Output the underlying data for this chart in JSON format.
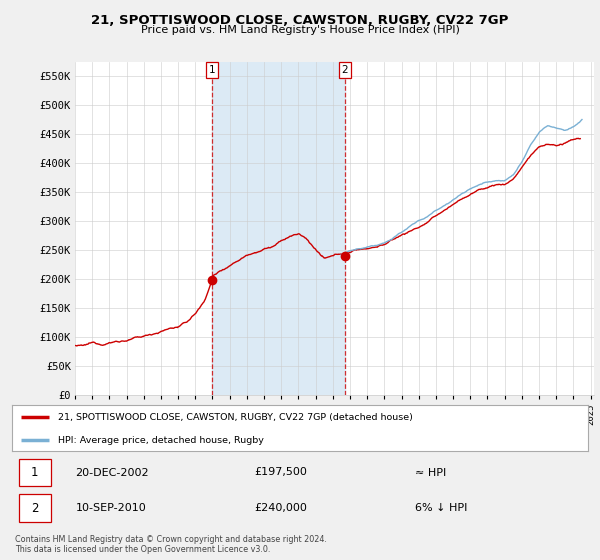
{
  "title": "21, SPOTTISWOOD CLOSE, CAWSTON, RUGBY, CV22 7GP",
  "subtitle": "Price paid vs. HM Land Registry's House Price Index (HPI)",
  "ylabel_ticks": [
    "£0",
    "£50K",
    "£100K",
    "£150K",
    "£200K",
    "£250K",
    "£300K",
    "£350K",
    "£400K",
    "£450K",
    "£500K",
    "£550K"
  ],
  "ytick_values": [
    0,
    50000,
    100000,
    150000,
    200000,
    250000,
    300000,
    350000,
    400000,
    450000,
    500000,
    550000
  ],
  "ylim": [
    0,
    575000
  ],
  "sale1_date": "20-DEC-2002",
  "sale1_price": 197500,
  "sale1_hpi": "≈ HPI",
  "sale2_date": "10-SEP-2010",
  "sale2_price": 240000,
  "sale2_hpi": "6% ↓ HPI",
  "legend_label1": "21, SPOTTISWOOD CLOSE, CAWSTON, RUGBY, CV22 7GP (detached house)",
  "legend_label2": "HPI: Average price, detached house, Rugby",
  "footer": "Contains HM Land Registry data © Crown copyright and database right 2024.\nThis data is licensed under the Open Government Licence v3.0.",
  "line_color_price": "#cc0000",
  "line_color_hpi": "#7ab0d4",
  "vline_color": "#cc0000",
  "highlight_color": "#dceaf5",
  "bg_color": "#ffffff",
  "grid_color": "#cccccc",
  "marker1_x": 2002.97,
  "marker1_y": 197500,
  "marker2_x": 2010.69,
  "marker2_y": 240000,
  "vline1_x": 2002.97,
  "vline2_x": 2010.69,
  "hpi_start_year": 2010.5,
  "xmin": 1995,
  "xmax": 2025,
  "page_bg": "#f0f0f0"
}
